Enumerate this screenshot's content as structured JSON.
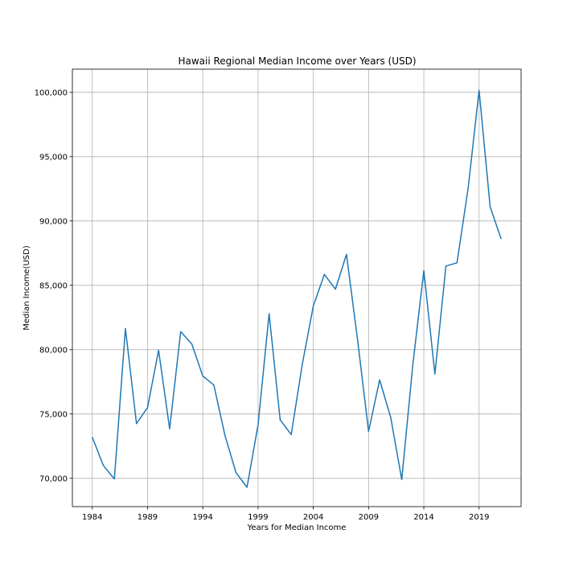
{
  "chart_data": {
    "type": "line",
    "title": "Hawaii Regional Median Income over Years (USD)",
    "xlabel": "Years for Median Income",
    "ylabel": "Median Income(USD)",
    "xlim": [
      1982.2,
      2022.8
    ],
    "ylim": [
      67800,
      101800
    ],
    "x_ticks": [
      1984,
      1989,
      1994,
      1999,
      2004,
      2009,
      2014,
      2019
    ],
    "y_ticks": [
      70000,
      75000,
      80000,
      85000,
      90000,
      95000,
      100000
    ],
    "y_tick_labels": [
      "70,000",
      "75,000",
      "80,000",
      "85,000",
      "90,000",
      "95,000",
      "100,000"
    ],
    "grid": true,
    "line_color": "#1f77b4",
    "series": [
      {
        "x": [
          1984,
          1985,
          1986,
          1987,
          1988,
          1989,
          1990,
          1991,
          1992,
          1993,
          1994,
          1995,
          1996,
          1997,
          1998,
          1999,
          2000,
          2001,
          2002,
          2003,
          2004,
          2005,
          2006,
          2007,
          2008,
          2009,
          2010,
          2011,
          2012,
          2013,
          2014,
          2015,
          2016,
          2017,
          2018,
          2019,
          2020,
          2021
        ],
        "values": [
          73200,
          71000,
          69950,
          81650,
          74250,
          75500,
          79950,
          73850,
          81400,
          80450,
          77950,
          77250,
          73350,
          70450,
          69300,
          74150,
          82800,
          74550,
          73400,
          78850,
          83400,
          85850,
          84700,
          87400,
          80800,
          73650,
          77650,
          74750,
          69900,
          78800,
          86150,
          78100,
          86500,
          86750,
          92500,
          100150,
          91100,
          88600
        ]
      }
    ]
  }
}
